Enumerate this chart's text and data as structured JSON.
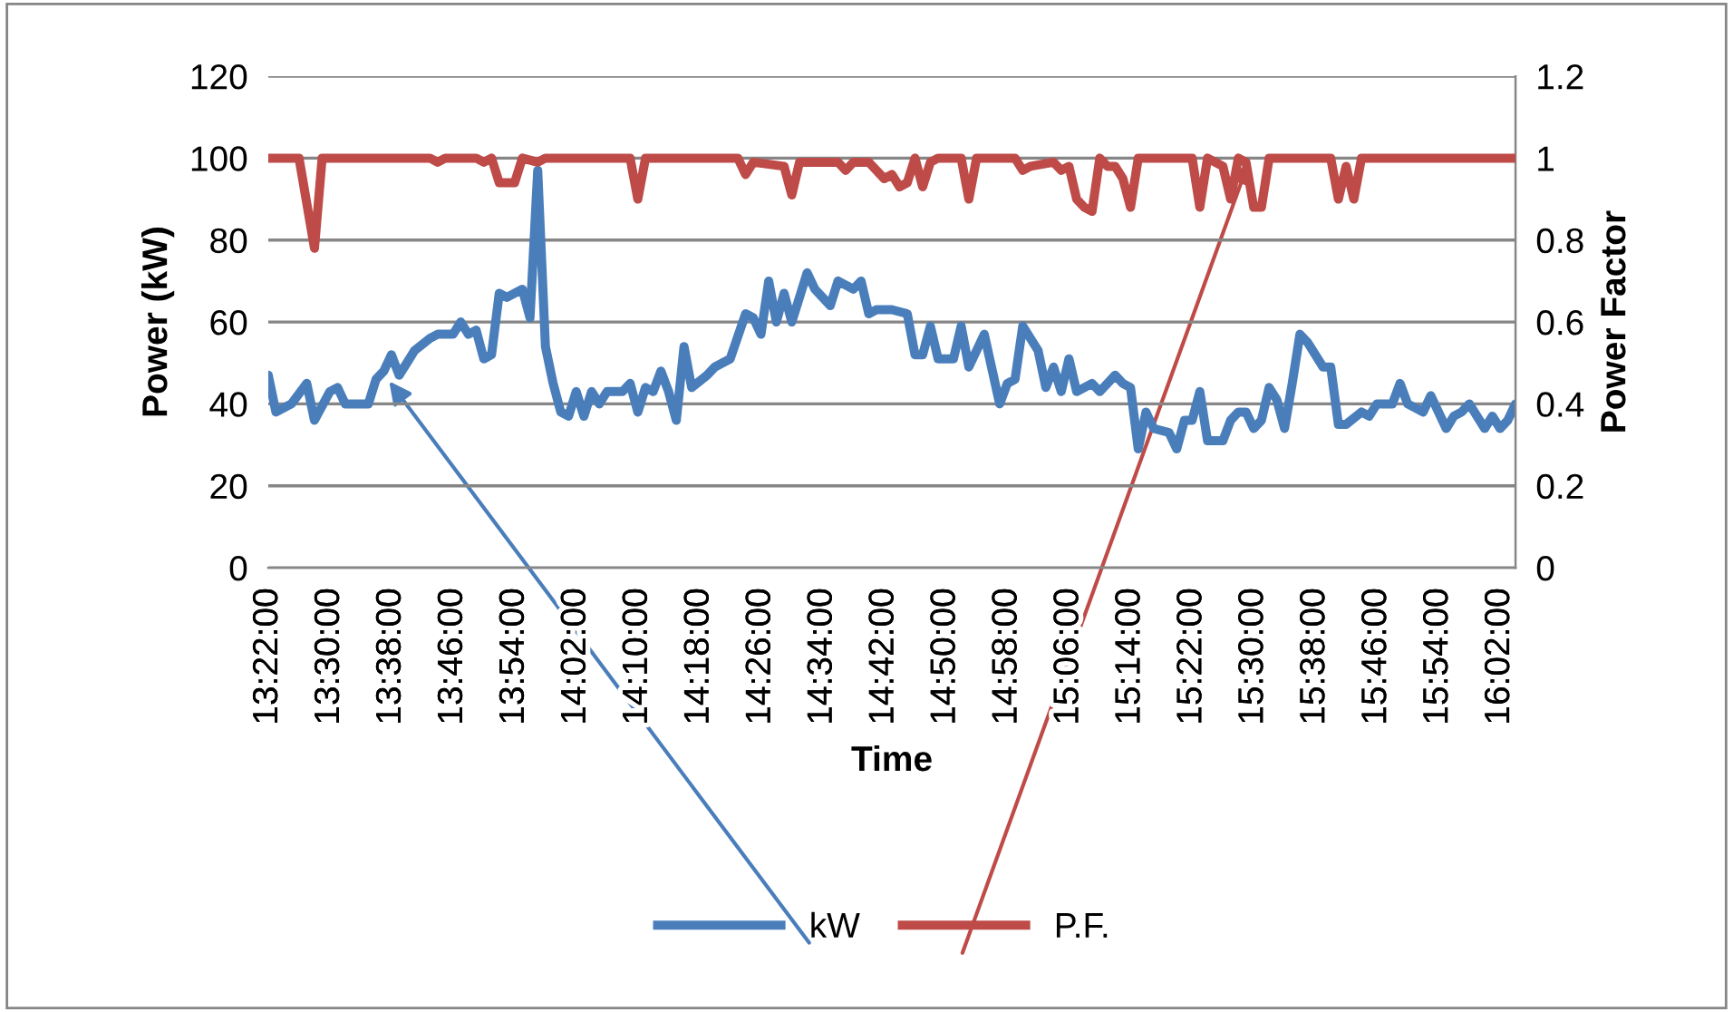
{
  "chart_data": {
    "type": "line",
    "xlabel": "Time",
    "ylabel": "Power (kW)",
    "y2label": "Power Factor",
    "xlim": [
      13.3667,
      16.0667
    ],
    "xticks": [
      {
        "value": 13.3667,
        "label": "13:22:00"
      },
      {
        "value": 13.5,
        "label": "13:30:00"
      },
      {
        "value": 13.6333,
        "label": "13:38:00"
      },
      {
        "value": 13.7667,
        "label": "13:46:00"
      },
      {
        "value": 13.9,
        "label": "13:54:00"
      },
      {
        "value": 14.0333,
        "label": "14:02:00"
      },
      {
        "value": 14.1667,
        "label": "14:10:00"
      },
      {
        "value": 14.3,
        "label": "14:18:00"
      },
      {
        "value": 14.4333,
        "label": "14:26:00"
      },
      {
        "value": 14.5667,
        "label": "14:34:00"
      },
      {
        "value": 14.7,
        "label": "14:42:00"
      },
      {
        "value": 14.8333,
        "label": "14:50:00"
      },
      {
        "value": 14.9667,
        "label": "14:58:00"
      },
      {
        "value": 15.1,
        "label": "15:06:00"
      },
      {
        "value": 15.2333,
        "label": "15:14:00"
      },
      {
        "value": 15.3667,
        "label": "15:22:00"
      },
      {
        "value": 15.5,
        "label": "15:30:00"
      },
      {
        "value": 15.6333,
        "label": "15:38:00"
      },
      {
        "value": 15.7667,
        "label": "15:46:00"
      },
      {
        "value": 15.9,
        "label": "15:54:00"
      },
      {
        "value": 16.0333,
        "label": "16:02:00"
      }
    ],
    "ylim": [
      0,
      120
    ],
    "yticks": [
      0,
      20,
      40,
      60,
      80,
      100,
      120
    ],
    "y2lim": [
      0,
      1.2
    ],
    "y2ticks": [
      0,
      0.2,
      0.4,
      0.6,
      0.8,
      1,
      1.2
    ],
    "grid": "y",
    "legend": "bottom",
    "marker": "none",
    "line_style": "solid",
    "series": [
      {
        "name": "kW",
        "color": "#4a7ebb",
        "x": [
          13.3667,
          13.3833,
          13.4167,
          13.45,
          13.4667,
          13.5,
          13.5167,
          13.5333,
          13.5833,
          13.6,
          13.6167,
          13.6333,
          13.65,
          13.6667,
          13.6833,
          13.7167,
          13.7333,
          13.7667,
          13.7833,
          13.8,
          13.8167,
          13.8333,
          13.85,
          13.8667,
          13.8833,
          13.9167,
          13.9333,
          13.95,
          13.9667,
          13.9833,
          14.0,
          14.0167,
          14.0333,
          14.05,
          14.0667,
          14.0833,
          14.1,
          14.1333,
          14.15,
          14.1667,
          14.1833,
          14.2,
          14.2167,
          14.2333,
          14.25,
          14.2667,
          14.2833,
          14.3167,
          14.3333,
          14.3667,
          14.4,
          14.4167,
          14.4333,
          14.45,
          14.4667,
          14.4833,
          14.5,
          14.5333,
          14.55,
          14.5833,
          14.6,
          14.6333,
          14.65,
          14.6667,
          14.6833,
          14.7167,
          14.75,
          14.7667,
          14.7833,
          14.8,
          14.8167,
          14.85,
          14.8667,
          14.8833,
          14.9167,
          14.95,
          14.9667,
          14.9833,
          15.0,
          15.0333,
          15.05,
          15.0667,
          15.0833,
          15.1,
          15.1167,
          15.15,
          15.1667,
          15.2,
          15.2167,
          15.2333,
          15.25,
          15.2667,
          15.2833,
          15.3167,
          15.3333,
          15.35,
          15.3667,
          15.3833,
          15.4,
          15.4333,
          15.45,
          15.4667,
          15.4833,
          15.5,
          15.5167,
          15.5333,
          15.55,
          15.5667,
          15.5833,
          15.6,
          15.6167,
          15.65,
          15.6667,
          15.6833,
          15.7,
          15.7333,
          15.75,
          15.7667,
          15.8,
          15.8167,
          15.8333,
          15.8667,
          15.8833,
          15.9167,
          15.9333,
          15.95,
          15.9667,
          16.0,
          16.0167,
          16.0333,
          16.05,
          16.0667
        ],
        "values": [
          47,
          38,
          40,
          45,
          36,
          43,
          44,
          40,
          40,
          46,
          48,
          52,
          47,
          50,
          53,
          56,
          57,
          57,
          60,
          57,
          58,
          51,
          52,
          67,
          66,
          68,
          61,
          97,
          54,
          45,
          38,
          37,
          43,
          37,
          43,
          40,
          43,
          43,
          45,
          38,
          44,
          43,
          48,
          43,
          36,
          54,
          44,
          47,
          49,
          51,
          62,
          61,
          57,
          70,
          60,
          67,
          60,
          72,
          68,
          64,
          70,
          68,
          70,
          62,
          63,
          63,
          62,
          52,
          52,
          59,
          51,
          51,
          59,
          49,
          57,
          40,
          45,
          46,
          59,
          53,
          44,
          49,
          43,
          51,
          43,
          45,
          43,
          47,
          45,
          44,
          29,
          38,
          34,
          33,
          29,
          36,
          36,
          43,
          31,
          31,
          36,
          38,
          38,
          34,
          36,
          44,
          41,
          34,
          45,
          57,
          55,
          49,
          49,
          35,
          35,
          38,
          37,
          40,
          40,
          45,
          40,
          38,
          42,
          34,
          37,
          38,
          40,
          34,
          37,
          34,
          36,
          40
        ]
      },
      {
        "name": "P.F.",
        "color": "#be4b48",
        "axis": "y2",
        "x": [
          13.3667,
          13.4333,
          13.4667,
          13.4833,
          13.7167,
          13.7333,
          13.75,
          13.8167,
          13.8333,
          13.85,
          13.8667,
          13.9,
          13.9167,
          13.95,
          13.9667,
          14.15,
          14.1667,
          14.1833,
          14.3833,
          14.4,
          14.4167,
          14.4833,
          14.5,
          14.5167,
          14.6,
          14.6167,
          14.6333,
          14.6667,
          14.7,
          14.7167,
          14.7333,
          14.75,
          14.7667,
          14.7833,
          14.8,
          14.8167,
          14.8667,
          14.8833,
          14.9,
          14.9833,
          15.0,
          15.0167,
          15.0667,
          15.0833,
          15.1,
          15.1167,
          15.1333,
          15.15,
          15.1667,
          15.1833,
          15.2,
          15.2167,
          15.2333,
          15.25,
          15.3667,
          15.3833,
          15.4,
          15.4167,
          15.4333,
          15.45,
          15.4667,
          15.4833,
          15.5,
          15.5167,
          15.5333,
          15.6667,
          15.6833,
          15.7,
          15.7167,
          15.7333,
          16.0667
        ],
        "values": [
          1,
          1,
          0.78,
          1,
          1,
          0.99,
          1,
          1,
          0.99,
          1,
          0.94,
          0.94,
          1,
          0.99,
          1,
          1,
          0.9,
          1,
          1,
          0.96,
          0.99,
          0.98,
          0.91,
          0.99,
          0.99,
          0.97,
          0.99,
          0.99,
          0.95,
          0.96,
          0.93,
          0.94,
          1,
          0.93,
          0.99,
          1,
          1,
          0.9,
          1,
          1,
          0.97,
          0.98,
          0.99,
          0.97,
          0.98,
          0.9,
          0.88,
          0.87,
          1,
          0.98,
          0.98,
          0.95,
          0.88,
          1,
          1,
          0.88,
          1,
          0.99,
          0.98,
          0.9,
          1,
          0.99,
          0.88,
          0.88,
          1,
          1,
          0.9,
          0.98,
          0.9,
          1,
          1
        ]
      }
    ]
  }
}
